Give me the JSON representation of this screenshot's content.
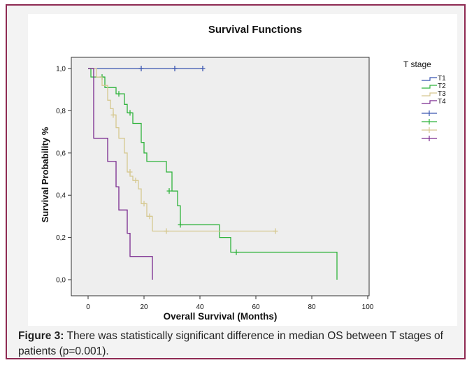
{
  "chart_data": {
    "type": "line",
    "subtype": "kaplan-meier step",
    "title": "Survival Functions",
    "xlabel": "Overall Survival (Months)",
    "ylabel": "Survival Probability %",
    "xlim": [
      0,
      100
    ],
    "ylim": [
      0.0,
      1.0
    ],
    "xticks": [
      "0",
      "20",
      "40",
      "60",
      "80",
      "100"
    ],
    "yticks": [
      "0,0",
      "0,2",
      "0,4",
      "0,6",
      "0,8",
      "1,0"
    ],
    "grid": false,
    "legend_title": "T stage",
    "legend_placement": "right",
    "series": [
      {
        "name": "T1",
        "color": "#3a56b0",
        "points": [
          [
            0,
            1.0
          ],
          [
            41,
            1.0
          ]
        ],
        "censored": [
          [
            19,
            1.0
          ],
          [
            31,
            1.0
          ],
          [
            41,
            1.0
          ]
        ]
      },
      {
        "name": "T2",
        "color": "#2fb33c",
        "points": [
          [
            0,
            1.0
          ],
          [
            1,
            1.0
          ],
          [
            1,
            0.96
          ],
          [
            6,
            0.96
          ],
          [
            6,
            0.91
          ],
          [
            10,
            0.91
          ],
          [
            10,
            0.88
          ],
          [
            13,
            0.88
          ],
          [
            13,
            0.83
          ],
          [
            14,
            0.83
          ],
          [
            14,
            0.79
          ],
          [
            16,
            0.79
          ],
          [
            16,
            0.74
          ],
          [
            19,
            0.74
          ],
          [
            19,
            0.65
          ],
          [
            20,
            0.65
          ],
          [
            20,
            0.6
          ],
          [
            21,
            0.6
          ],
          [
            21,
            0.56
          ],
          [
            28,
            0.56
          ],
          [
            28,
            0.51
          ],
          [
            30,
            0.51
          ],
          [
            30,
            0.42
          ],
          [
            32,
            0.42
          ],
          [
            32,
            0.35
          ],
          [
            33,
            0.35
          ],
          [
            33,
            0.26
          ],
          [
            47,
            0.26
          ],
          [
            47,
            0.2
          ],
          [
            51,
            0.2
          ],
          [
            51,
            0.13
          ],
          [
            89,
            0.13
          ],
          [
            89,
            0.0
          ]
        ],
        "censored": [
          [
            5,
            0.96
          ],
          [
            11,
            0.88
          ],
          [
            15,
            0.79
          ],
          [
            29,
            0.42
          ],
          [
            33,
            0.26
          ],
          [
            53,
            0.13
          ]
        ]
      },
      {
        "name": "T3",
        "color": "#d6c890",
        "points": [
          [
            0,
            1.0
          ],
          [
            3,
            1.0
          ],
          [
            3,
            0.96
          ],
          [
            5,
            0.96
          ],
          [
            5,
            0.92
          ],
          [
            7,
            0.92
          ],
          [
            7,
            0.85
          ],
          [
            8,
            0.85
          ],
          [
            8,
            0.81
          ],
          [
            9,
            0.81
          ],
          [
            9,
            0.78
          ],
          [
            10,
            0.78
          ],
          [
            10,
            0.72
          ],
          [
            11,
            0.72
          ],
          [
            11,
            0.67
          ],
          [
            13,
            0.67
          ],
          [
            13,
            0.6
          ],
          [
            14,
            0.6
          ],
          [
            14,
            0.51
          ],
          [
            15,
            0.51
          ],
          [
            15,
            0.49
          ],
          [
            16,
            0.49
          ],
          [
            16,
            0.47
          ],
          [
            18,
            0.47
          ],
          [
            18,
            0.43
          ],
          [
            19,
            0.43
          ],
          [
            19,
            0.36
          ],
          [
            21,
            0.36
          ],
          [
            21,
            0.3
          ],
          [
            23,
            0.3
          ],
          [
            23,
            0.23
          ],
          [
            67,
            0.23
          ]
        ],
        "censored": [
          [
            9,
            0.78
          ],
          [
            15,
            0.51
          ],
          [
            17,
            0.47
          ],
          [
            20,
            0.36
          ],
          [
            22,
            0.3
          ],
          [
            28,
            0.23
          ],
          [
            67,
            0.23
          ]
        ]
      },
      {
        "name": "T4",
        "color": "#7a2a8f",
        "points": [
          [
            0,
            1.0
          ],
          [
            2,
            1.0
          ],
          [
            2,
            0.67
          ],
          [
            7,
            0.67
          ],
          [
            7,
            0.56
          ],
          [
            10,
            0.56
          ],
          [
            10,
            0.44
          ],
          [
            11,
            0.44
          ],
          [
            11,
            0.33
          ],
          [
            14,
            0.33
          ],
          [
            14,
            0.22
          ],
          [
            15,
            0.22
          ],
          [
            15,
            0.11
          ],
          [
            23,
            0.11
          ],
          [
            23,
            0.0
          ]
        ],
        "censored": []
      }
    ]
  },
  "caption": {
    "label": "Figure 3:",
    "text": " There was statistically significant difference in median OS between T stages of patients (p=0.001)."
  }
}
